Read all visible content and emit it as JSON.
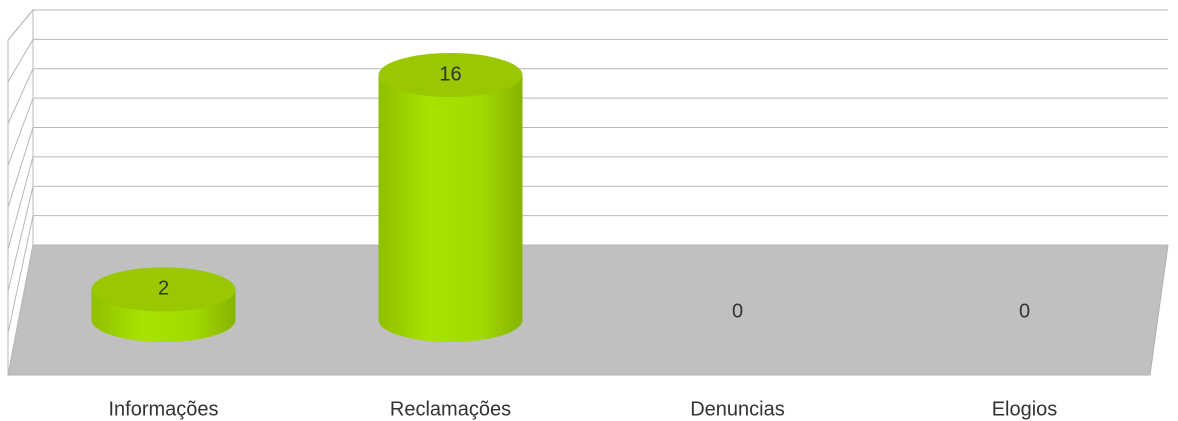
{
  "chart_data": {
    "type": "cylinder",
    "categories": [
      "Informações",
      "Reclamações",
      "Denuncias",
      "Elogios"
    ],
    "values": [
      2,
      16,
      0,
      0
    ],
    "color": "#a4d800",
    "ylim": [
      0,
      16
    ],
    "yticks": [
      0,
      2,
      4,
      6,
      8,
      10,
      12,
      14,
      16
    ],
    "grid": true
  }
}
